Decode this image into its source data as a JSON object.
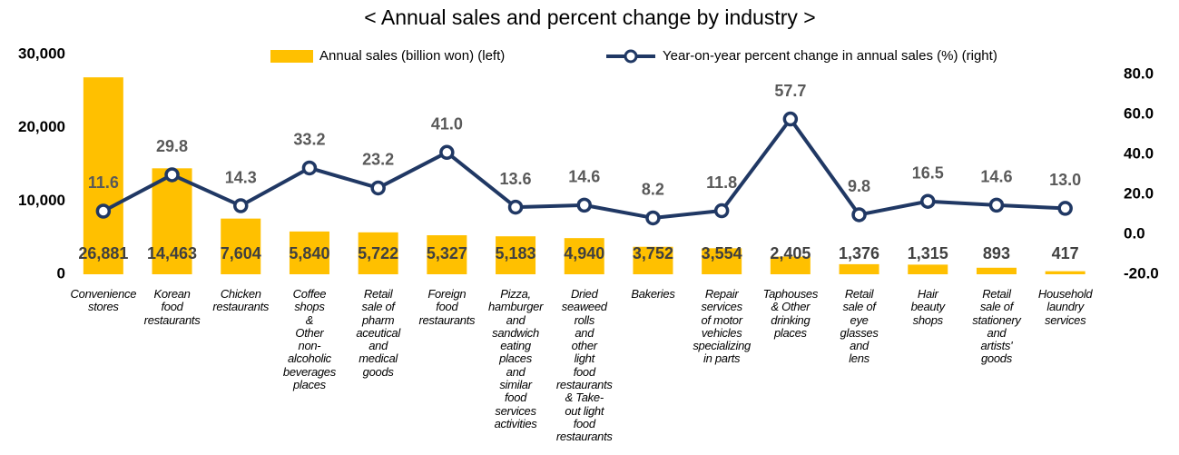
{
  "chart_data": {
    "type": "bar_line",
    "title": "< Annual sales and percent change by industry >",
    "categories": [
      "Convenience\nstores",
      "Korean\nfood\nrestaurants",
      "Chicken\nrestaurants",
      "Coffee\nshops\n&\nOther\nnon-\nalcoholic\nbeverages\nplaces",
      "Retail\nsale of\npharm\naceutical\nand\nmedical\ngoods",
      "Foreign\nfood\nrestaurants",
      "Pizza,\nhamburger\nand\nsandwich\neating\nplaces\nand\nsimilar\nfood\nservices\nactivities",
      "Dried\nseaweed\nrolls\nand\nother\nlight\nfood\nrestaurants\n& Take-\nout light\nfood\nrestaurants",
      "Bakeries",
      "Repair\nservices\nof motor\nvehicles\nspecializing\nin parts",
      "Taphouses\n& Other\ndrinking\nplaces",
      "Retail\nsale of\neye\nglasses\nand\nlens",
      "Hair\nbeauty\nshops",
      "Retail\nsale of\nstationery\nand\nartists'\ngoods",
      "Household\nlaundry\nservices"
    ],
    "series": [
      {
        "name": "Annual sales (billion won) (left)",
        "type": "bar",
        "color": "#FFC000",
        "values": [
          26881,
          14463,
          7604,
          5840,
          5722,
          5327,
          5183,
          4940,
          3752,
          3554,
          2405,
          1376,
          1315,
          893,
          417
        ],
        "value_labels": [
          "26,881",
          "14,463",
          "7,604",
          "5,840",
          "5,722",
          "5,327",
          "5,183",
          "4,940",
          "3,752",
          "3,554",
          "2,405",
          "1,376",
          "1,315",
          "893",
          "417"
        ]
      },
      {
        "name": "Year-on-year percent change in annual sales (%) (right)",
        "type": "line",
        "axis": "y2",
        "color": "#203864",
        "values": [
          11.6,
          29.8,
          14.3,
          33.2,
          23.2,
          41.0,
          13.6,
          14.6,
          8.2,
          11.8,
          57.7,
          9.8,
          16.5,
          14.6,
          13.0
        ],
        "value_labels": [
          "11.6",
          "29.8",
          "14.3",
          "33.2",
          "23.2",
          "41.0",
          "13.6",
          "14.6",
          "8.2",
          "11.8",
          "57.7",
          "9.8",
          "16.5",
          "14.6",
          "13.0"
        ]
      }
    ],
    "ylim": [
      0,
      30000
    ],
    "yticks": [
      {
        "value": 0,
        "label": "0"
      },
      {
        "value": 10000,
        "label": "10,000"
      },
      {
        "value": 20000,
        "label": "20,000"
      },
      {
        "value": 30000,
        "label": "30,000"
      }
    ],
    "y2lim": [
      -20,
      80
    ],
    "y2ticks": [
      {
        "value": -20,
        "label": "-20.0"
      },
      {
        "value": 0,
        "label": "0.0"
      },
      {
        "value": 20,
        "label": "20.0"
      },
      {
        "value": 40,
        "label": "40.0"
      },
      {
        "value": 60,
        "label": "60.0"
      },
      {
        "value": 80,
        "label": "80.0"
      }
    ],
    "legend": "top"
  }
}
